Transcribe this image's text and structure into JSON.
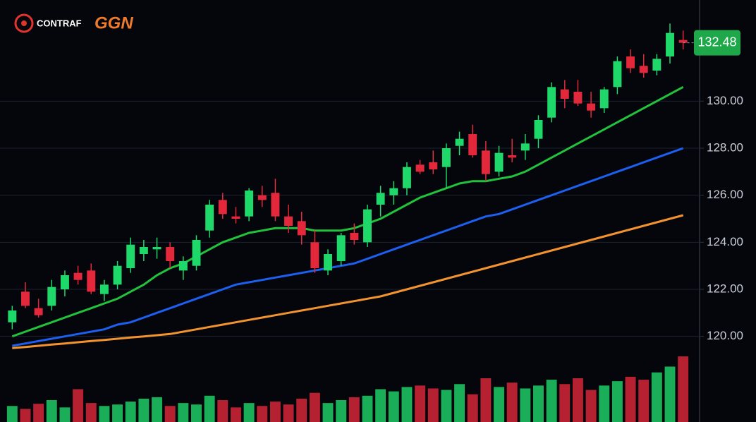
{
  "header": {
    "logos": [
      "CONTRAF",
      "GGN"
    ]
  },
  "chart_data": {
    "type": "candlestick",
    "open": [
      120.6,
      121.9,
      121.2,
      121.3,
      122.0,
      122.7,
      122.8,
      121.8,
      122.2,
      122.9,
      123.5,
      123.7,
      123.8,
      122.8,
      123.0,
      124.5,
      125.8,
      125.1,
      125.1,
      126.0,
      126.1,
      125.1,
      124.9,
      124.0,
      122.8,
      123.2,
      124.4,
      124.0,
      125.6,
      126.0,
      126.3,
      127.3,
      127.4,
      127.2,
      128.1,
      128.6,
      127.9,
      127.0,
      127.7,
      127.9,
      128.4,
      129.3,
      130.5,
      130.4,
      129.9,
      129.7,
      130.6,
      131.9,
      131.5,
      131.3,
      131.9,
      132.6
    ],
    "high": [
      121.3,
      122.3,
      121.6,
      122.4,
      122.8,
      123.0,
      123.1,
      122.4,
      123.2,
      124.2,
      124.1,
      124.2,
      124.0,
      123.4,
      124.3,
      125.8,
      126.1,
      125.5,
      126.3,
      126.4,
      126.7,
      125.6,
      125.3,
      124.5,
      123.7,
      124.4,
      124.8,
      125.6,
      126.4,
      126.6,
      127.4,
      127.5,
      127.9,
      128.2,
      128.7,
      129.0,
      128.3,
      128.1,
      128.4,
      128.6,
      129.4,
      130.8,
      130.9,
      130.9,
      130.4,
      130.6,
      131.9,
      132.2,
      132.0,
      132.0,
      133.3,
      133.0
    ],
    "low": [
      120.3,
      121.2,
      120.8,
      121.1,
      121.7,
      122.2,
      121.8,
      121.5,
      122.0,
      122.7,
      123.2,
      123.3,
      122.9,
      122.4,
      122.8,
      124.2,
      125.0,
      124.8,
      124.9,
      125.5,
      124.9,
      124.4,
      123.9,
      122.7,
      122.6,
      123.0,
      123.9,
      123.8,
      125.1,
      125.6,
      126.0,
      126.9,
      126.9,
      126.3,
      127.7,
      127.6,
      126.6,
      126.8,
      127.4,
      127.5,
      128.0,
      129.1,
      129.7,
      129.8,
      129.3,
      129.5,
      130.3,
      131.2,
      131.0,
      131.1,
      131.6,
      132.2
    ],
    "close": [
      121.1,
      121.3,
      120.9,
      122.1,
      122.6,
      122.4,
      121.9,
      122.2,
      123.0,
      123.9,
      123.8,
      123.8,
      123.2,
      123.2,
      124.1,
      125.6,
      125.2,
      125.0,
      126.2,
      125.8,
      125.1,
      124.7,
      124.3,
      122.9,
      123.5,
      124.3,
      124.1,
      125.4,
      126.1,
      126.3,
      127.2,
      127.0,
      127.1,
      128.0,
      128.4,
      127.7,
      126.9,
      127.8,
      127.6,
      128.2,
      129.2,
      130.6,
      130.1,
      129.9,
      129.6,
      130.5,
      131.7,
      131.4,
      131.2,
      131.8,
      132.9,
      132.48
    ],
    "volume": [
      22,
      18,
      25,
      30,
      20,
      45,
      26,
      22,
      24,
      28,
      32,
      34,
      22,
      26,
      24,
      36,
      30,
      20,
      26,
      22,
      28,
      24,
      32,
      40,
      26,
      30,
      34,
      36,
      45,
      42,
      48,
      50,
      46,
      44,
      52,
      38,
      60,
      48,
      54,
      46,
      50,
      58,
      52,
      60,
      44,
      50,
      56,
      62,
      58,
      68,
      76,
      90
    ],
    "up_color": "#1fd86a",
    "down_color": "#e3283c",
    "moving_averages": [
      {
        "color": "#22c23c",
        "values": [
          120.0,
          120.2,
          120.4,
          120.6,
          120.8,
          121.0,
          121.2,
          121.4,
          121.6,
          121.9,
          122.2,
          122.6,
          122.9,
          123.1,
          123.4,
          123.7,
          124.0,
          124.2,
          124.4,
          124.5,
          124.6,
          124.6,
          124.6,
          124.5,
          124.5,
          124.5,
          124.6,
          124.8,
          125.0,
          125.3,
          125.6,
          125.9,
          126.1,
          126.3,
          126.5,
          126.6,
          126.6,
          126.7,
          126.8,
          127.0,
          127.3,
          127.6,
          127.9,
          128.2,
          128.5,
          128.8,
          129.1,
          129.4,
          129.7,
          130.0,
          130.3,
          130.6
        ]
      },
      {
        "color": "#1d5ff0",
        "values": [
          119.6,
          119.7,
          119.8,
          119.9,
          120.0,
          120.1,
          120.2,
          120.3,
          120.5,
          120.6,
          120.8,
          121.0,
          121.2,
          121.4,
          121.6,
          121.8,
          122.0,
          122.2,
          122.3,
          122.4,
          122.5,
          122.6,
          122.7,
          122.8,
          122.9,
          123.0,
          123.1,
          123.3,
          123.5,
          123.7,
          123.9,
          124.1,
          124.3,
          124.5,
          124.7,
          124.9,
          125.1,
          125.2,
          125.4,
          125.6,
          125.8,
          126.0,
          126.2,
          126.4,
          126.6,
          126.8,
          127.0,
          127.2,
          127.4,
          127.6,
          127.8,
          128.0
        ]
      },
      {
        "color": "#f2932f",
        "values": [
          119.5,
          119.55,
          119.6,
          119.65,
          119.7,
          119.75,
          119.8,
          119.85,
          119.9,
          119.95,
          120.0,
          120.05,
          120.1,
          120.2,
          120.3,
          120.4,
          120.5,
          120.6,
          120.7,
          120.8,
          120.9,
          121.0,
          121.1,
          121.2,
          121.3,
          121.4,
          121.5,
          121.6,
          121.7,
          121.85,
          122.0,
          122.15,
          122.3,
          122.45,
          122.6,
          122.75,
          122.9,
          123.05,
          123.2,
          123.35,
          123.5,
          123.65,
          123.8,
          123.95,
          124.1,
          124.25,
          124.4,
          124.55,
          124.7,
          124.85,
          125.0,
          125.15
        ]
      }
    ],
    "ylim": [
      119,
      134
    ],
    "yticks": [
      {
        "value": 120,
        "label": "120.00"
      },
      {
        "value": 122,
        "label": "122.00"
      },
      {
        "value": 124,
        "label": "124.00"
      },
      {
        "value": 126,
        "label": "126.00"
      },
      {
        "value": 128,
        "label": "128.00"
      },
      {
        "value": 130,
        "label": "130.00"
      }
    ],
    "grid": true
  }
}
